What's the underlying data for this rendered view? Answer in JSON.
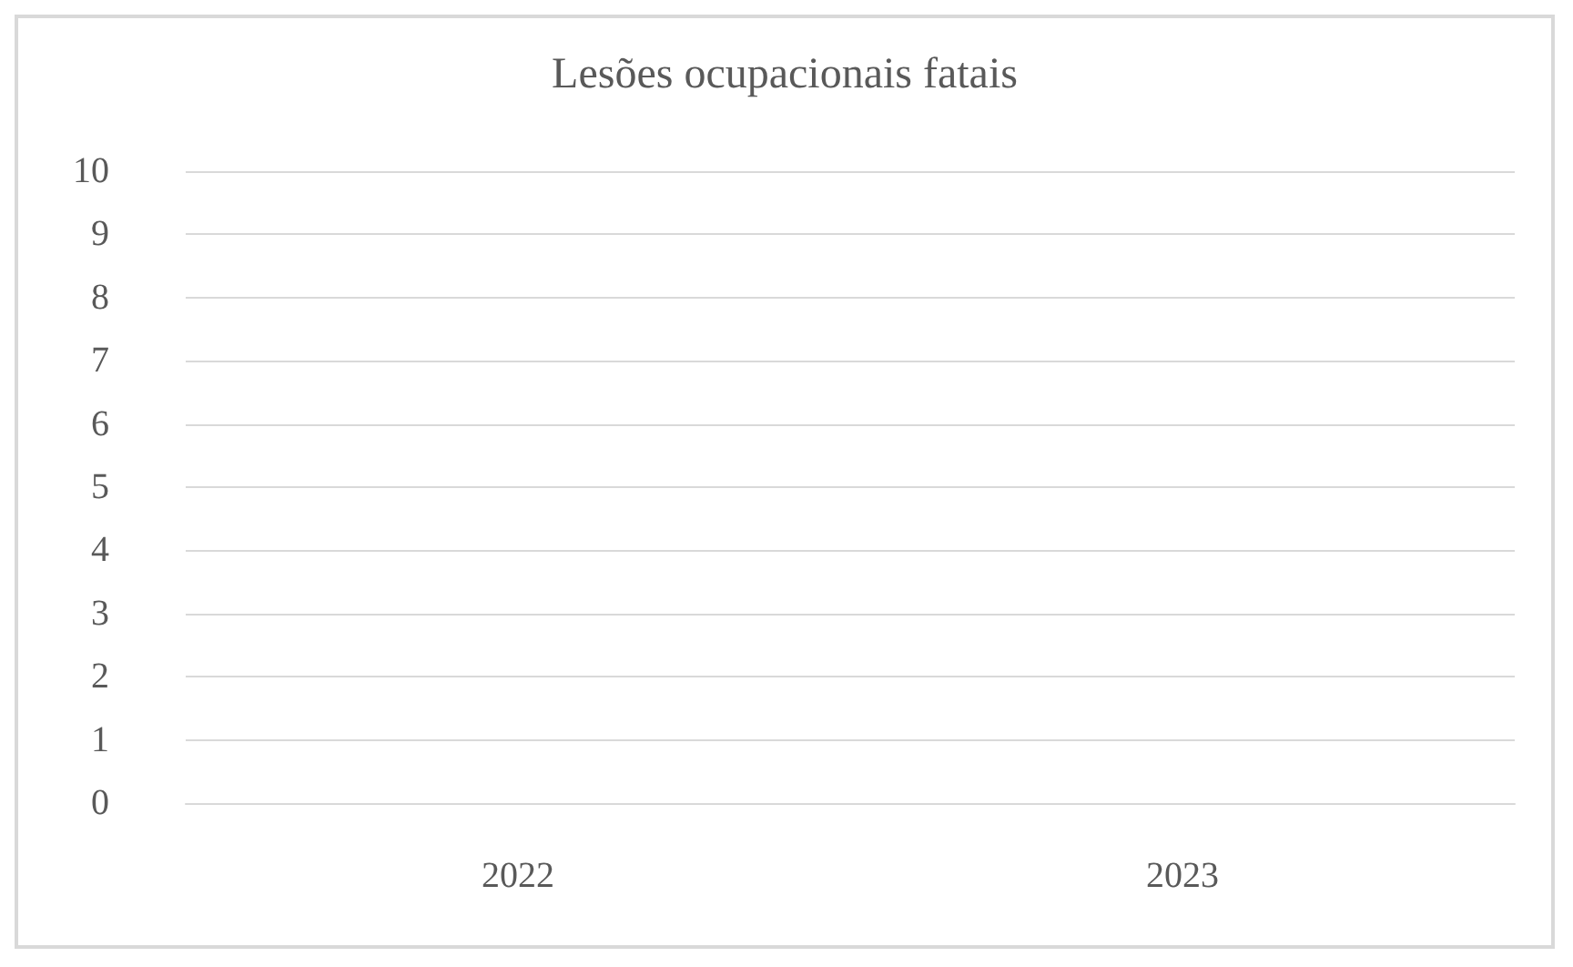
{
  "chart_data": {
    "type": "bar",
    "title": "Lesões ocupacionais fatais",
    "categories": [
      "2022",
      "2023"
    ],
    "values": [
      0,
      0
    ],
    "ylim": [
      0,
      10
    ],
    "yticks": [
      0,
      1,
      2,
      3,
      4,
      5,
      6,
      7,
      8,
      9,
      10
    ],
    "grid": "y"
  }
}
